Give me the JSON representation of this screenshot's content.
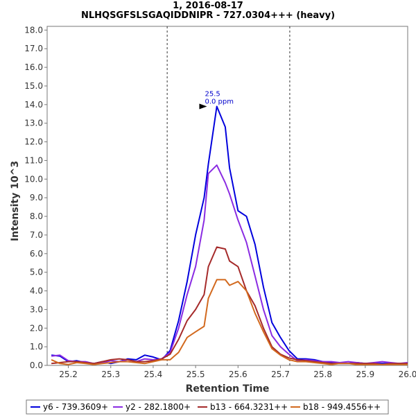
{
  "chart_data": {
    "type": "line",
    "title": "1, 2016-08-17",
    "subtitle": "NLHQSGFSLSGAQIDDNIPR - 727.0304+++ (heavy)",
    "xlabel": "Retention Time",
    "ylabel": "Intensity 10^3",
    "xlim": [
      25.15,
      26.0
    ],
    "ylim": [
      0,
      18.2
    ],
    "x_ticks": [
      "25.2",
      "25.3",
      "25.4",
      "25.5",
      "25.6",
      "25.7",
      "25.8",
      "25.9",
      "26.0"
    ],
    "y_ticks": [
      "0.0",
      "1.0",
      "2.0",
      "3.0",
      "4.0",
      "5.0",
      "6.0",
      "7.0",
      "8.0",
      "9.0",
      "10.0",
      "11.0",
      "12.0",
      "13.0",
      "14.0",
      "15.0",
      "16.0",
      "17.0",
      "18.0"
    ],
    "grid": false,
    "legend_position": "bottom",
    "boundaries": [
      25.433,
      25.722
    ],
    "annotation": {
      "x": 25.53,
      "y": 13.9,
      "line1": "25.5",
      "line2": "0.0 ppm"
    },
    "series": [
      {
        "name": "y6 - 739.3609+",
        "color": "#0000dd",
        "x": [
          25.16,
          25.18,
          25.2,
          25.22,
          25.24,
          25.26,
          25.28,
          25.3,
          25.32,
          25.34,
          25.36,
          25.38,
          25.4,
          25.42,
          25.44,
          25.46,
          25.48,
          25.5,
          25.52,
          25.53,
          25.55,
          25.57,
          25.58,
          25.6,
          25.62,
          25.64,
          25.66,
          25.68,
          25.7,
          25.72,
          25.74,
          25.76,
          25.78,
          25.8,
          25.82,
          25.84,
          25.86,
          25.88,
          25.9,
          25.92,
          25.94,
          25.96,
          25.98,
          26.0
        ],
        "y": [
          0.55,
          0.5,
          0.2,
          0.25,
          0.15,
          0.1,
          0.2,
          0.1,
          0.2,
          0.35,
          0.3,
          0.55,
          0.45,
          0.3,
          0.8,
          2.4,
          4.5,
          7.0,
          9.0,
          10.8,
          13.9,
          12.8,
          10.6,
          8.3,
          8.0,
          6.5,
          4.2,
          2.3,
          1.5,
          0.8,
          0.35,
          0.35,
          0.3,
          0.2,
          0.15,
          0.1,
          0.1,
          0.15,
          0.1,
          0.1,
          0.1,
          0.1,
          0.1,
          0.1
        ]
      },
      {
        "name": "y2 - 282.1800+",
        "color": "#8a2be2",
        "x": [
          25.16,
          25.18,
          25.2,
          25.22,
          25.24,
          25.26,
          25.28,
          25.3,
          25.32,
          25.34,
          25.36,
          25.38,
          25.4,
          25.42,
          25.44,
          25.46,
          25.48,
          25.5,
          25.52,
          25.53,
          25.55,
          25.57,
          25.58,
          25.6,
          25.62,
          25.64,
          25.66,
          25.68,
          25.7,
          25.72,
          25.74,
          25.76,
          25.78,
          25.8,
          25.82,
          25.84,
          25.86,
          25.88,
          25.9,
          25.92,
          25.94,
          25.96,
          25.98,
          26.0
        ],
        "y": [
          0.5,
          0.55,
          0.25,
          0.2,
          0.2,
          0.1,
          0.15,
          0.25,
          0.2,
          0.3,
          0.2,
          0.35,
          0.3,
          0.35,
          0.7,
          2.0,
          3.8,
          5.3,
          7.8,
          10.3,
          10.75,
          9.8,
          9.2,
          7.8,
          6.6,
          4.8,
          3.0,
          1.6,
          1.0,
          0.6,
          0.25,
          0.3,
          0.25,
          0.2,
          0.2,
          0.15,
          0.2,
          0.15,
          0.1,
          0.15,
          0.2,
          0.15,
          0.1,
          0.15
        ]
      },
      {
        "name": "b13 - 664.3231++",
        "color": "#a52a2a",
        "x": [
          25.16,
          25.18,
          25.2,
          25.22,
          25.24,
          25.26,
          25.28,
          25.3,
          25.32,
          25.34,
          25.36,
          25.38,
          25.4,
          25.42,
          25.44,
          25.46,
          25.48,
          25.5,
          25.52,
          25.53,
          25.55,
          25.57,
          25.58,
          25.6,
          25.62,
          25.64,
          25.66,
          25.68,
          25.7,
          25.72,
          25.74,
          25.76,
          25.78,
          25.8,
          25.82,
          25.84,
          25.86,
          25.88,
          25.9,
          25.92,
          25.94,
          25.96,
          25.98,
          26.0
        ],
        "y": [
          0.1,
          0.15,
          0.2,
          0.2,
          0.15,
          0.1,
          0.2,
          0.3,
          0.35,
          0.3,
          0.2,
          0.2,
          0.25,
          0.35,
          0.6,
          1.4,
          2.4,
          3.0,
          3.8,
          5.3,
          6.35,
          6.25,
          5.6,
          5.3,
          4.0,
          3.2,
          2.0,
          1.0,
          0.6,
          0.4,
          0.3,
          0.25,
          0.2,
          0.15,
          0.1,
          0.1,
          0.1,
          0.1,
          0.1,
          0.1,
          0.05,
          0.1,
          0.1,
          0.1
        ]
      },
      {
        "name": "b18 - 949.4556++",
        "color": "#d2691e",
        "x": [
          25.16,
          25.18,
          25.2,
          25.22,
          25.24,
          25.26,
          25.28,
          25.3,
          25.32,
          25.34,
          25.36,
          25.38,
          25.4,
          25.42,
          25.44,
          25.46,
          25.48,
          25.5,
          25.52,
          25.53,
          25.55,
          25.57,
          25.58,
          25.6,
          25.62,
          25.64,
          25.66,
          25.68,
          25.7,
          25.72,
          25.74,
          25.76,
          25.78,
          25.8,
          25.82,
          25.84,
          25.86,
          25.88,
          25.9,
          25.92,
          25.94,
          25.96,
          25.98,
          26.0
        ],
        "y": [
          0.3,
          0.1,
          0.05,
          0.15,
          0.1,
          0.05,
          0.1,
          0.15,
          0.2,
          0.2,
          0.15,
          0.1,
          0.2,
          0.3,
          0.3,
          0.7,
          1.5,
          1.8,
          2.1,
          3.6,
          4.6,
          4.6,
          4.3,
          4.5,
          4.0,
          2.8,
          1.8,
          0.9,
          0.55,
          0.3,
          0.2,
          0.2,
          0.15,
          0.1,
          0.05,
          0.1,
          0.1,
          0.05,
          0.05,
          0.05,
          0.05,
          0.05,
          0.05,
          0.05
        ]
      }
    ]
  }
}
